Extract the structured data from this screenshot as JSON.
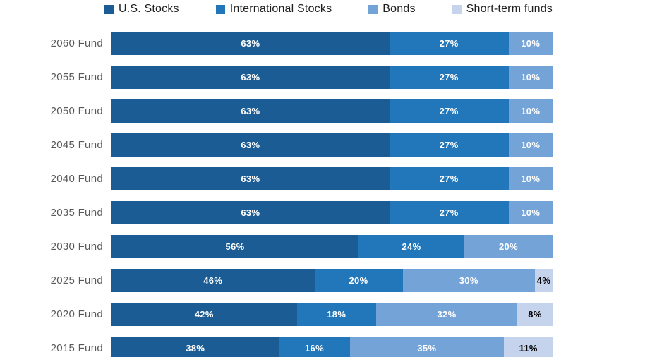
{
  "chart_data": {
    "type": "bar",
    "orientation": "horizontal-stacked-100",
    "legend_position": "top",
    "grid": false,
    "value_suffix": "%",
    "xlim": [
      0,
      100
    ],
    "categories": [
      "2060 Fund",
      "2055 Fund",
      "2050 Fund",
      "2045 Fund",
      "2040 Fund",
      "2035 Fund",
      "2030 Fund",
      "2025 Fund",
      "2020 Fund",
      "2015 Fund"
    ],
    "series": [
      {
        "name": "U.S. Stocks",
        "color": "#1a5c93",
        "label_color": "#ffffff",
        "values": [
          63,
          63,
          63,
          63,
          63,
          63,
          56,
          46,
          42,
          38
        ]
      },
      {
        "name": "International Stocks",
        "color": "#2277ba",
        "label_color": "#ffffff",
        "values": [
          27,
          27,
          27,
          27,
          27,
          27,
          24,
          20,
          18,
          16
        ]
      },
      {
        "name": "Bonds",
        "color": "#74a3d8",
        "label_color": "#ffffff",
        "values": [
          10,
          10,
          10,
          10,
          10,
          10,
          20,
          30,
          32,
          35
        ]
      },
      {
        "name": "Short-term funds",
        "color": "#c5d4ec",
        "label_color": "#000000",
        "values": [
          0,
          0,
          0,
          0,
          0,
          0,
          0,
          4,
          8,
          11
        ]
      }
    ]
  }
}
